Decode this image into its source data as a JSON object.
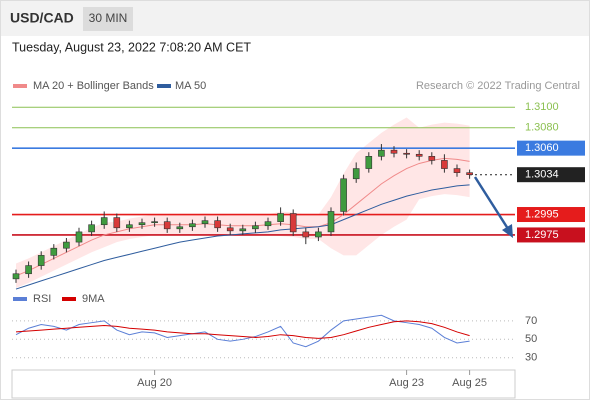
{
  "header": {
    "symbol": "USD/CAD",
    "interval": "30 MIN",
    "timestamp": "Tuesday, August 23, 2022 7:08:20 AM CET"
  },
  "chart_data": [
    {
      "type": "candlestick",
      "credit": "Research © 2022 Trading Central",
      "ylim": [
        1.2925,
        1.3114
      ],
      "categories": [
        null,
        null,
        null,
        null,
        null,
        null,
        null,
        null,
        null,
        null,
        null,
        "Aug 20",
        null,
        null,
        null,
        null,
        null,
        null,
        null,
        null,
        null,
        null,
        null,
        null,
        null,
        null,
        null,
        null,
        null,
        null,
        null,
        "Aug 23",
        null,
        null,
        null,
        null,
        "Aug 25"
      ],
      "open": [
        1.2932,
        1.2937,
        1.2945,
        1.2955,
        1.2962,
        1.2968,
        1.2978,
        1.2985,
        1.2992,
        1.2982,
        1.2985,
        1.2987,
        1.2988,
        1.2981,
        1.2983,
        1.2986,
        1.2989,
        1.2982,
        1.2979,
        1.2981,
        1.2984,
        1.2988,
        1.2996,
        1.2978,
        1.2973,
        1.2978,
        1.2998,
        1.303,
        1.304,
        1.3052,
        1.3058,
        1.3055,
        1.3054,
        1.3052,
        1.3048,
        1.304,
        1.3036
      ],
      "high": [
        1.2941,
        1.2949,
        1.2959,
        1.2966,
        1.2972,
        1.2982,
        1.2989,
        1.2998,
        1.2996,
        1.2989,
        1.2991,
        1.2992,
        1.2992,
        1.2987,
        1.299,
        1.2993,
        1.2993,
        1.2986,
        1.2985,
        1.2988,
        1.2992,
        1.3002,
        1.3,
        1.2982,
        1.2982,
        1.3002,
        1.3034,
        1.3046,
        1.3056,
        1.3064,
        1.3062,
        1.3059,
        1.3058,
        1.3056,
        1.3054,
        1.3044,
        1.3039
      ],
      "low": [
        1.2928,
        1.2933,
        1.2941,
        1.2951,
        1.2958,
        1.2964,
        1.2974,
        1.2981,
        1.2978,
        1.2978,
        1.2981,
        1.2983,
        1.2977,
        1.2977,
        1.2979,
        1.2982,
        1.2978,
        1.2975,
        1.2975,
        1.2977,
        1.298,
        1.2984,
        1.2974,
        1.2966,
        1.2969,
        1.2974,
        1.2994,
        1.3026,
        1.3036,
        1.3048,
        1.3051,
        1.305,
        1.3048,
        1.3044,
        1.3036,
        1.3032,
        1.303
      ],
      "close": [
        1.2937,
        1.2945,
        1.2955,
        1.2962,
        1.2968,
        1.2978,
        1.2985,
        1.2992,
        1.2982,
        1.2985,
        1.2987,
        1.2988,
        1.2981,
        1.2983,
        1.2986,
        1.2989,
        1.2982,
        1.2979,
        1.2981,
        1.2984,
        1.2988,
        1.2996,
        1.2978,
        1.2973,
        1.2978,
        1.2998,
        1.303,
        1.304,
        1.3052,
        1.3058,
        1.3055,
        1.3054,
        1.3052,
        1.3048,
        1.304,
        1.3036,
        1.3034
      ],
      "up_color": "#3f9b3f",
      "down_color": "#d83a3a",
      "series": [
        {
          "name": "MA 20 + Bollinger Bands",
          "color": "#f08a8a",
          "band_color": "#ffd6d6",
          "values": [
            1.2935,
            1.294,
            1.2946,
            1.2952,
            1.2958,
            1.2964,
            1.297,
            1.2975,
            1.2978,
            1.2981,
            1.2983,
            1.2985,
            1.2985,
            1.2985,
            1.2985,
            1.2986,
            1.2985,
            1.2984,
            1.2984,
            1.2984,
            1.2985,
            1.2986,
            1.2985,
            1.2983,
            1.2983,
            1.2987,
            1.2995,
            1.3005,
            1.3015,
            1.3025,
            1.3033,
            1.304,
            1.3045,
            1.3048,
            1.305,
            1.3049,
            1.3047
          ],
          "upper": [
            1.2947,
            1.2952,
            1.2958,
            1.2964,
            1.297,
            1.2976,
            1.2982,
            1.2987,
            1.2988,
            1.2991,
            1.2993,
            1.2995,
            1.2995,
            1.2995,
            1.2995,
            1.2996,
            1.2995,
            1.2994,
            1.2994,
            1.2994,
            1.2995,
            1.2998,
            1.2997,
            1.2995,
            1.2995,
            1.3012,
            1.3035,
            1.3055,
            1.3065,
            1.3075,
            1.3083,
            1.309,
            1.308,
            1.3083,
            1.3085,
            1.3084,
            1.3082
          ],
          "lower": [
            1.2923,
            1.2928,
            1.2934,
            1.294,
            1.2946,
            1.2952,
            1.2958,
            1.2963,
            1.2968,
            1.2971,
            1.2973,
            1.2975,
            1.2975,
            1.2975,
            1.2975,
            1.2976,
            1.2975,
            1.2974,
            1.2974,
            1.2974,
            1.2975,
            1.2974,
            1.2973,
            1.2971,
            1.2971,
            1.2962,
            1.2955,
            1.2955,
            1.2965,
            1.2975,
            1.2983,
            1.299,
            1.301,
            1.3013,
            1.3015,
            1.3014,
            1.3012
          ]
        },
        {
          "name": "MA 50",
          "color": "#2f5d9e",
          "values": [
            1.2922,
            1.2926,
            1.293,
            1.2934,
            1.2938,
            1.2942,
            1.2946,
            1.295,
            1.2953,
            1.2956,
            1.2959,
            1.2962,
            1.2965,
            1.2968,
            1.297,
            1.2972,
            1.2974,
            1.2975,
            1.2976,
            1.2977,
            1.2978,
            1.298,
            1.2981,
            1.2982,
            1.2983,
            1.2985,
            1.299,
            1.2995,
            1.3,
            1.3005,
            1.3009,
            1.3013,
            1.3016,
            1.3019,
            1.3021,
            1.3023,
            1.3024
          ]
        }
      ],
      "levels": [
        {
          "value": 1.31,
          "label": "1.3100",
          "color": "#8cc152",
          "boxed": false,
          "dotted": false
        },
        {
          "value": 1.308,
          "label": "1.3080",
          "color": "#8cc152",
          "boxed": false,
          "dotted": false
        },
        {
          "value": 1.306,
          "label": "1.3060",
          "color": "#3b7be0",
          "boxed": true,
          "dotted": false
        },
        {
          "value": 1.3034,
          "label": "1.3034",
          "color": "#222222",
          "boxed": true,
          "dotted": true
        },
        {
          "value": 1.2995,
          "label": "1.2995",
          "color": "#e51c1c",
          "boxed": true,
          "dotted": false
        },
        {
          "value": 1.2975,
          "label": "1.2975",
          "color": "#c8101e",
          "boxed": true,
          "dotted": false
        }
      ]
    },
    {
      "type": "line",
      "ylim": [
        20,
        85
      ],
      "yticks": [
        30,
        50,
        70
      ],
      "grid": true,
      "series": [
        {
          "name": "RSI",
          "color": "#5b7fd6",
          "values": [
            55,
            62,
            66,
            64,
            60,
            66,
            68,
            70,
            60,
            55,
            58,
            57,
            52,
            54,
            56,
            58,
            50,
            48,
            50,
            53,
            58,
            64,
            46,
            42,
            48,
            60,
            70,
            72,
            74,
            76,
            70,
            68,
            66,
            62,
            52,
            46,
            48
          ]
        },
        {
          "name": "9MA",
          "color": "#d40000",
          "values": [
            58,
            59,
            60,
            61,
            62,
            63,
            64,
            65,
            64,
            62,
            61,
            60,
            58,
            57,
            56,
            56,
            55,
            54,
            53,
            52,
            53,
            55,
            54,
            52,
            51,
            52,
            55,
            59,
            63,
            66,
            69,
            70,
            69,
            67,
            63,
            58,
            54
          ]
        }
      ]
    }
  ]
}
